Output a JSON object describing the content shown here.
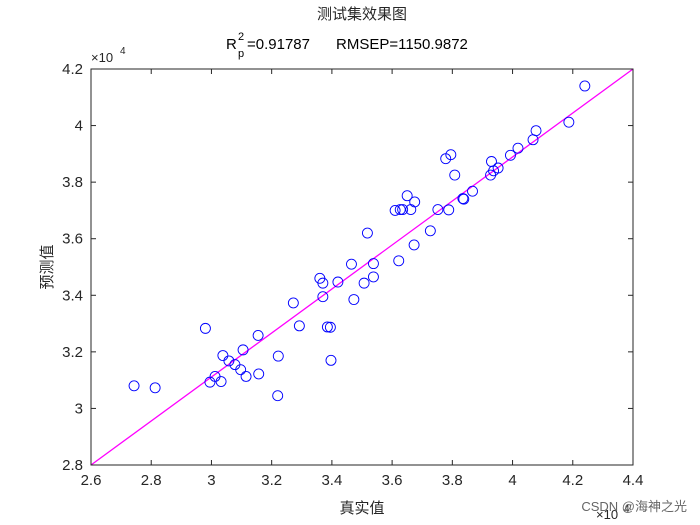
{
  "chart_data": {
    "type": "scatter",
    "title": "测试集效果图",
    "subtitle": {
      "r_symbol": "R",
      "r_subscript": "p",
      "r_superscript": "2",
      "r_value_text": "=0.91787",
      "rmsep_text": "RMSEP=1150.9872"
    },
    "xlabel": "真实值",
    "ylabel": "预测值",
    "x_exponent_label": "×10",
    "x_exponent_power": "4",
    "y_exponent_label": "×10",
    "y_exponent_power": "4",
    "xlim": [
      2.6,
      4.4
    ],
    "ylim": [
      2.8,
      4.2
    ],
    "xticks": [
      2.6,
      2.8,
      3,
      3.2,
      3.4,
      3.6,
      3.8,
      4,
      4.2,
      4.4
    ],
    "xtick_labels": [
      "2.6",
      "2.8",
      "3",
      "3.2",
      "3.4",
      "3.6",
      "3.8",
      "4",
      "4.2",
      "4.4"
    ],
    "yticks": [
      2.8,
      3,
      3.2,
      3.4,
      3.6,
      3.8,
      4,
      4.2
    ],
    "ytick_labels": [
      "2.8",
      "3",
      "3.2",
      "3.4",
      "3.6",
      "3.8",
      "4",
      "4.2"
    ],
    "grid": false,
    "reference_line": {
      "x": [
        2.6,
        4.4
      ],
      "y": [
        2.8,
        4.2
      ],
      "color": "#ff00ff"
    },
    "series": [
      {
        "marker": "circle-open",
        "color": "#0000ff",
        "points": [
          [
            2.743,
            3.08
          ],
          [
            2.813,
            3.073
          ],
          [
            2.98,
            3.283
          ],
          [
            2.995,
            3.093
          ],
          [
            3.012,
            3.113
          ],
          [
            3.032,
            3.095
          ],
          [
            3.038,
            3.187
          ],
          [
            3.058,
            3.168
          ],
          [
            3.078,
            3.155
          ],
          [
            3.097,
            3.137
          ],
          [
            3.105,
            3.207
          ],
          [
            3.115,
            3.113
          ],
          [
            3.155,
            3.258
          ],
          [
            3.157,
            3.122
          ],
          [
            3.22,
            3.045
          ],
          [
            3.222,
            3.185
          ],
          [
            3.272,
            3.373
          ],
          [
            3.292,
            3.292
          ],
          [
            3.36,
            3.46
          ],
          [
            3.37,
            3.443
          ],
          [
            3.37,
            3.395
          ],
          [
            3.385,
            3.288
          ],
          [
            3.395,
            3.287
          ],
          [
            3.397,
            3.17
          ],
          [
            3.42,
            3.447
          ],
          [
            3.465,
            3.51
          ],
          [
            3.473,
            3.385
          ],
          [
            3.507,
            3.443
          ],
          [
            3.518,
            3.62
          ],
          [
            3.538,
            3.512
          ],
          [
            3.538,
            3.465
          ],
          [
            3.61,
            3.7
          ],
          [
            3.622,
            3.522
          ],
          [
            3.627,
            3.703
          ],
          [
            3.635,
            3.703
          ],
          [
            3.65,
            3.752
          ],
          [
            3.662,
            3.703
          ],
          [
            3.673,
            3.578
          ],
          [
            3.675,
            3.73
          ],
          [
            3.727,
            3.628
          ],
          [
            3.752,
            3.703
          ],
          [
            3.778,
            3.883
          ],
          [
            3.788,
            3.702
          ],
          [
            3.795,
            3.897
          ],
          [
            3.808,
            3.825
          ],
          [
            3.835,
            3.742
          ],
          [
            3.838,
            3.74
          ],
          [
            3.867,
            3.768
          ],
          [
            3.927,
            3.825
          ],
          [
            3.93,
            3.873
          ],
          [
            3.937,
            3.84
          ],
          [
            3.952,
            3.85
          ],
          [
            3.993,
            3.895
          ],
          [
            4.018,
            3.92
          ],
          [
            4.068,
            3.95
          ],
          [
            4.078,
            3.982
          ],
          [
            4.187,
            4.012
          ],
          [
            4.24,
            4.14
          ]
        ]
      }
    ]
  },
  "watermark": "CSDN @海神之光"
}
